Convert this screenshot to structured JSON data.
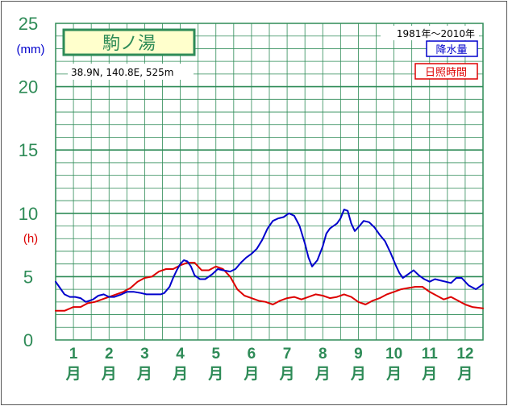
{
  "chart_data": {
    "type": "line",
    "station": "駒ノ湯",
    "location": "38.9N,  140.8E,  525m",
    "period": "1981年〜2010年",
    "y_ticks": [
      "0",
      "5",
      "10",
      "15",
      "20",
      "25"
    ],
    "ylim": [
      0,
      25
    ],
    "grid": true,
    "y_units": {
      "precipitation": "(mm)",
      "sunshine": "(h)"
    },
    "months": [
      {
        "num": "1",
        "suffix": "月"
      },
      {
        "num": "2",
        "suffix": "月"
      },
      {
        "num": "3",
        "suffix": "月"
      },
      {
        "num": "4",
        "suffix": "月"
      },
      {
        "num": "5",
        "suffix": "月"
      },
      {
        "num": "6",
        "suffix": "月"
      },
      {
        "num": "7",
        "suffix": "月"
      },
      {
        "num": "8",
        "suffix": "月"
      },
      {
        "num": "9",
        "suffix": "月"
      },
      {
        "num": "10",
        "suffix": "月"
      },
      {
        "num": "11",
        "suffix": "月"
      },
      {
        "num": "12",
        "suffix": "月"
      }
    ],
    "x_range": [
      0.5,
      12.5
    ],
    "series": [
      {
        "name": "降水量",
        "color": "#0000cc",
        "x": [
          0.5,
          0.6,
          0.75,
          0.9,
          1.05,
          1.2,
          1.35,
          1.55,
          1.7,
          1.85,
          2.0,
          2.15,
          2.35,
          2.5,
          2.7,
          2.9,
          3.05,
          3.25,
          3.45,
          3.55,
          3.7,
          3.8,
          3.9,
          4.0,
          4.1,
          4.2,
          4.3,
          4.4,
          4.55,
          4.7,
          4.9,
          5.05,
          5.2,
          5.4,
          5.55,
          5.7,
          5.85,
          6.0,
          6.15,
          6.3,
          6.45,
          6.6,
          6.75,
          6.9,
          7.05,
          7.2,
          7.35,
          7.5,
          7.6,
          7.7,
          7.85,
          8.0,
          8.1,
          8.2,
          8.3,
          8.4,
          8.5,
          8.6,
          8.7,
          8.8,
          8.9,
          9.0,
          9.15,
          9.3,
          9.45,
          9.6,
          9.75,
          9.9,
          10.05,
          10.15,
          10.25,
          10.4,
          10.55,
          10.7,
          10.85,
          11.0,
          11.15,
          11.3,
          11.45,
          11.6,
          11.75,
          11.9,
          12.1,
          12.3,
          12.5
        ],
        "values": [
          4.6,
          4.2,
          3.6,
          3.4,
          3.4,
          3.3,
          3.0,
          3.2,
          3.5,
          3.6,
          3.4,
          3.4,
          3.6,
          3.8,
          3.8,
          3.7,
          3.6,
          3.6,
          3.6,
          3.7,
          4.2,
          4.9,
          5.5,
          6.0,
          6.3,
          6.2,
          5.8,
          5.1,
          4.8,
          4.8,
          5.2,
          5.6,
          5.5,
          5.4,
          5.6,
          6.1,
          6.5,
          6.8,
          7.2,
          7.9,
          8.8,
          9.4,
          9.6,
          9.7,
          10.0,
          9.8,
          9.0,
          7.6,
          6.5,
          5.8,
          6.3,
          7.4,
          8.4,
          8.8,
          9.0,
          9.2,
          9.6,
          10.3,
          10.2,
          9.2,
          8.6,
          8.9,
          9.4,
          9.3,
          8.9,
          8.3,
          7.8,
          6.9,
          5.9,
          5.3,
          4.9,
          5.2,
          5.5,
          5.1,
          4.8,
          4.6,
          4.8,
          4.7,
          4.6,
          4.5,
          4.9,
          4.9,
          4.3,
          4.0,
          4.4
        ]
      },
      {
        "name": "日照時間",
        "color": "#dd0000",
        "x": [
          0.5,
          0.75,
          1.0,
          1.2,
          1.4,
          1.6,
          1.8,
          2.0,
          2.2,
          2.4,
          2.6,
          2.8,
          3.0,
          3.2,
          3.4,
          3.6,
          3.8,
          4.0,
          4.2,
          4.4,
          4.6,
          4.8,
          5.0,
          5.2,
          5.4,
          5.6,
          5.8,
          6.0,
          6.2,
          6.4,
          6.6,
          6.8,
          7.0,
          7.2,
          7.4,
          7.6,
          7.8,
          8.0,
          8.2,
          8.4,
          8.6,
          8.8,
          9.0,
          9.2,
          9.4,
          9.6,
          9.8,
          10.0,
          10.2,
          10.4,
          10.6,
          10.8,
          11.0,
          11.2,
          11.4,
          11.6,
          11.8,
          12.0,
          12.2,
          12.5
        ],
        "values": [
          2.3,
          2.3,
          2.6,
          2.6,
          2.9,
          3.0,
          3.2,
          3.4,
          3.6,
          3.8,
          4.1,
          4.6,
          4.9,
          5.0,
          5.4,
          5.6,
          5.6,
          5.9,
          6.1,
          6.1,
          5.5,
          5.5,
          5.8,
          5.6,
          5.0,
          4.0,
          3.5,
          3.3,
          3.1,
          3.0,
          2.8,
          3.1,
          3.3,
          3.4,
          3.2,
          3.4,
          3.6,
          3.5,
          3.3,
          3.4,
          3.6,
          3.4,
          3.0,
          2.8,
          3.1,
          3.3,
          3.6,
          3.8,
          4.0,
          4.1,
          4.2,
          4.2,
          3.8,
          3.5,
          3.2,
          3.4,
          3.1,
          2.8,
          2.6,
          2.5
        ]
      }
    ]
  }
}
